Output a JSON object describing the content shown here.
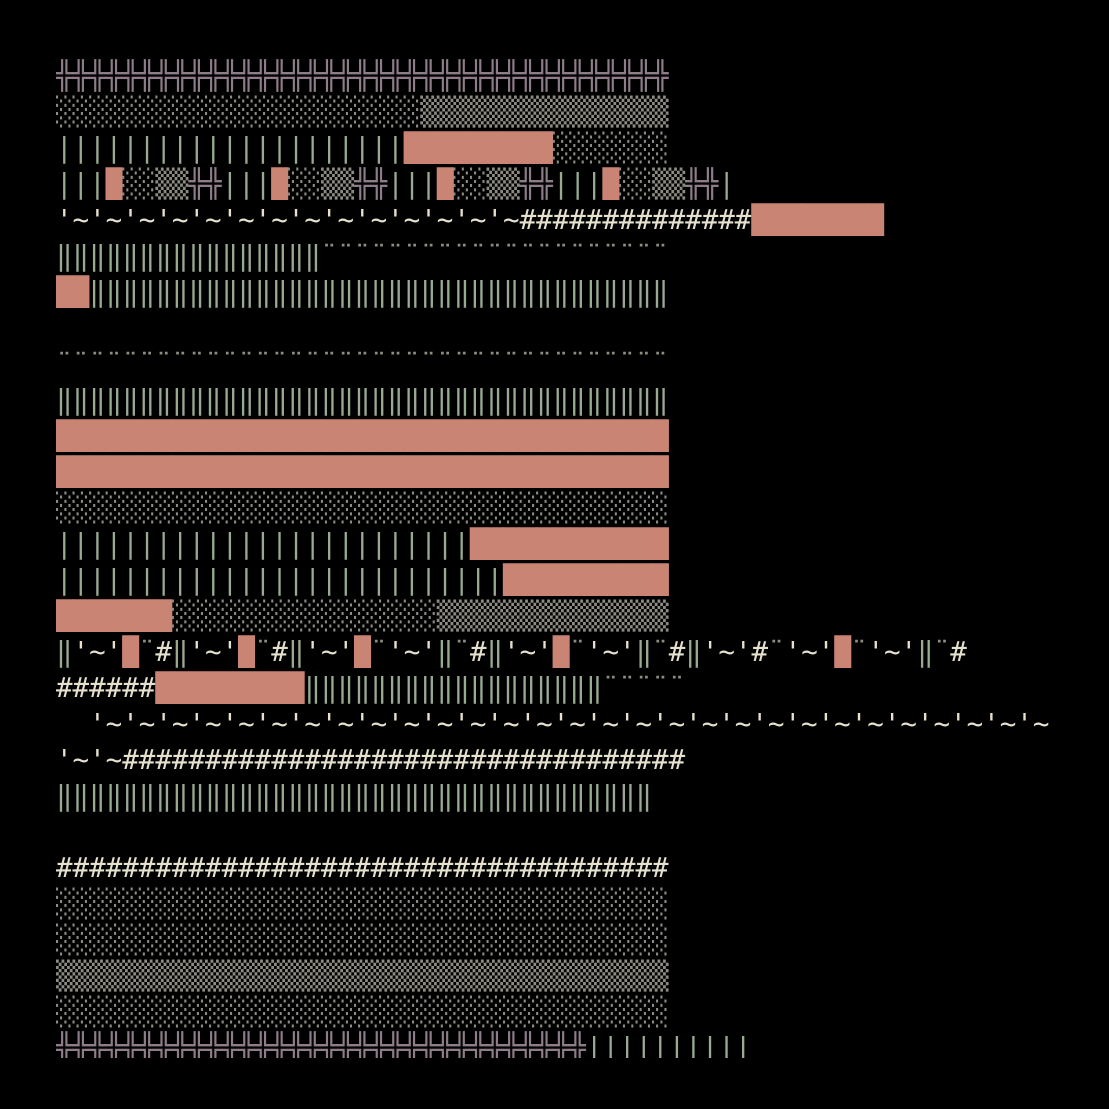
{
  "palette": {
    "background": "#000000",
    "mauve": "#8e7d88",
    "dots": "#8d8c82",
    "green": "#98aa92",
    "salmon": "#c98473",
    "ivory": "#e6e0cf"
  },
  "rows": [
    {
      "segments": [
        {
          "color": "mauve",
          "text": "╬╬╬╬╬╬╬╬╬╬╬╬╬╬╬╬╬╬╬╬╬╬╬╬╬╬╬╬╬╬╬╬╬╬╬╬╬"
        }
      ]
    },
    {
      "segments": [
        {
          "color": "dots",
          "text": "░░░░░░░░░░░░░░░░░░░░░░▒▒▒▒▒▒▒▒▒▒▒▒▒▒▒"
        }
      ]
    },
    {
      "segments": [
        {
          "color": "green",
          "text": "|||||||||||||||||||||"
        },
        {
          "color": "salmon",
          "text": "█████████"
        },
        {
          "color": "dots",
          "text": "░░░░░░░"
        }
      ]
    },
    {
      "segments": [
        {
          "color": "green",
          "text": "|||"
        },
        {
          "color": "salmon",
          "text": "█"
        },
        {
          "color": "dots",
          "text": "░░▒▒"
        },
        {
          "color": "mauve",
          "text": "╬╬"
        },
        {
          "color": "green",
          "text": "|||"
        },
        {
          "color": "salmon",
          "text": "█"
        },
        {
          "color": "dots",
          "text": "░░▒▒"
        },
        {
          "color": "mauve",
          "text": "╬╬"
        },
        {
          "color": "green",
          "text": "|||"
        },
        {
          "color": "salmon",
          "text": "█"
        },
        {
          "color": "dots",
          "text": "░░▒▒"
        },
        {
          "color": "mauve",
          "text": "╬╬"
        },
        {
          "color": "green",
          "text": "|||"
        },
        {
          "color": "salmon",
          "text": "█"
        },
        {
          "color": "dots",
          "text": "░░▒▒"
        },
        {
          "color": "mauve",
          "text": "╬╬"
        },
        {
          "color": "green",
          "text": "|"
        }
      ]
    },
    {
      "segments": [
        {
          "color": "ivory",
          "text": "'~'~'~'~'~'~'~'~'~'~'~'~'~'~##############"
        },
        {
          "color": "salmon",
          "text": "████████"
        }
      ]
    },
    {
      "segments": [
        {
          "color": "green",
          "text": "‖‖‖‖‖‖‖‖‖‖‖‖‖‖‖‖"
        },
        {
          "color": "dots",
          "text": "¨¨¨¨¨¨¨¨¨¨¨¨¨¨¨¨¨¨¨¨¨"
        }
      ]
    },
    {
      "segments": [
        {
          "color": "salmon",
          "text": "██"
        },
        {
          "color": "green",
          "text": "‖‖‖‖‖‖‖‖‖‖‖‖‖‖‖‖‖‖‖‖‖‖‖‖‖‖‖‖‖‖‖‖‖‖‖"
        }
      ]
    },
    {
      "segments": [
        {
          "color": "dots",
          "text": ""
        }
      ]
    },
    {
      "segments": [
        {
          "color": "dots",
          "text": "¨¨¨¨¨¨¨¨¨¨¨¨¨¨¨¨¨¨¨¨¨¨¨¨¨¨¨¨¨¨¨¨¨¨¨¨¨"
        }
      ]
    },
    {
      "segments": [
        {
          "color": "green",
          "text": "‖‖‖‖‖‖‖‖‖‖‖‖‖‖‖‖‖‖‖‖‖‖‖‖‖‖‖‖‖‖‖‖‖‖‖‖‖"
        }
      ]
    },
    {
      "segments": [
        {
          "color": "salmon",
          "text": "█████████████████████████████████████"
        }
      ]
    },
    {
      "segments": [
        {
          "color": "salmon",
          "text": "█████████████████████████████████████"
        }
      ]
    },
    {
      "segments": [
        {
          "color": "dots",
          "text": "░░░░░░░░░░░░░░░░░░░░░░░░░░░░░░░░░░░░░"
        }
      ]
    },
    {
      "segments": [
        {
          "color": "green",
          "text": "|||||||||||||||||||||||||"
        },
        {
          "color": "salmon",
          "text": "████████████"
        }
      ]
    },
    {
      "segments": [
        {
          "color": "green",
          "text": "|||||||||||||||||||||||||||"
        },
        {
          "color": "salmon",
          "text": "██████████"
        }
      ]
    },
    {
      "segments": [
        {
          "color": "salmon",
          "text": "███████"
        },
        {
          "color": "dots",
          "text": "░░░░░░░░░░░░░░░░▒▒▒▒▒▒▒▒▒▒▒▒▒▒"
        }
      ]
    },
    {
      "segments": [
        {
          "color": "green",
          "text": "‖"
        },
        {
          "color": "ivory",
          "text": "'~'"
        },
        {
          "color": "salmon",
          "text": "█"
        },
        {
          "color": "dots",
          "text": "¨"
        },
        {
          "color": "ivory",
          "text": "#"
        },
        {
          "color": "green",
          "text": "‖"
        },
        {
          "color": "ivory",
          "text": "'~'"
        },
        {
          "color": "salmon",
          "text": "█"
        },
        {
          "color": "dots",
          "text": "¨"
        },
        {
          "color": "ivory",
          "text": "#"
        },
        {
          "color": "green",
          "text": "‖"
        },
        {
          "color": "ivory",
          "text": "'~'"
        },
        {
          "color": "salmon",
          "text": "█"
        },
        {
          "color": "dots",
          "text": "¨"
        },
        {
          "color": "ivory",
          "text": "'~'"
        },
        {
          "color": "green",
          "text": "‖"
        },
        {
          "color": "dots",
          "text": "¨"
        },
        {
          "color": "ivory",
          "text": "#"
        },
        {
          "color": "green",
          "text": "‖"
        },
        {
          "color": "ivory",
          "text": "'~'"
        },
        {
          "color": "salmon",
          "text": "█"
        },
        {
          "color": "dots",
          "text": "¨"
        },
        {
          "color": "ivory",
          "text": "'~'"
        },
        {
          "color": "green",
          "text": "‖"
        },
        {
          "color": "dots",
          "text": "¨"
        },
        {
          "color": "ivory",
          "text": "#"
        },
        {
          "color": "green",
          "text": "‖"
        },
        {
          "color": "ivory",
          "text": "'~'#"
        },
        {
          "color": "dots",
          "text": "¨"
        },
        {
          "color": "ivory",
          "text": "'~'"
        },
        {
          "color": "salmon",
          "text": "█"
        },
        {
          "color": "dots",
          "text": "¨"
        },
        {
          "color": "ivory",
          "text": "'~'"
        },
        {
          "color": "green",
          "text": "‖"
        },
        {
          "color": "dots",
          "text": "¨"
        },
        {
          "color": "ivory",
          "text": "#"
        }
      ]
    },
    {
      "segments": [
        {
          "color": "ivory",
          "text": "######"
        },
        {
          "color": "salmon",
          "text": "█████████"
        },
        {
          "color": "green",
          "text": "‖‖‖‖‖‖‖‖‖‖‖‖‖‖‖‖‖‖"
        },
        {
          "color": "dots",
          "text": "¨¨¨¨¨"
        }
      ]
    },
    {
      "segments": [
        {
          "color": "dots",
          "text": ""
        },
        {
          "color": "ivory",
          "text": "  '~'~'~'~'~'~'~'~'~'~'~'~'~'~'~'~'~'~'~'~'~'~'~'~'~'~'~'~'~'~'~'~'~'~'~'~'"
        }
      ]
    },
    {
      "segments": [
        {
          "color": "ivory",
          "text": "'~'~##################################"
        }
      ]
    },
    {
      "segments": [
        {
          "color": "green",
          "text": "‖‖‖‖‖‖‖‖‖‖‖‖‖‖‖‖‖‖‖‖‖‖‖‖‖‖‖‖‖‖‖‖‖‖‖‖"
        }
      ]
    },
    {
      "segments": [
        {
          "color": "dots",
          "text": ""
        }
      ]
    },
    {
      "segments": [
        {
          "color": "ivory",
          "text": "#####################################"
        }
      ]
    },
    {
      "segments": [
        {
          "color": "dots",
          "text": "░░░░░░░░░░░░░░░░░░░░░░░░░░░░░░░░░░░░░"
        }
      ]
    },
    {
      "segments": [
        {
          "color": "dots",
          "text": "░░░░░░░░░░░░░░░░░░░░░░░░░░░░░░░░░░░░░"
        }
      ]
    },
    {
      "segments": [
        {
          "color": "dots",
          "text": "▒▒▒▒▒▒▒▒▒▒▒▒▒▒▒▒▒▒▒▒▒▒▒▒▒▒▒▒▒▒▒▒▒▒▒▒▒"
        }
      ]
    },
    {
      "segments": [
        {
          "color": "dots",
          "text": "░░░░░░░░░░░░░░░░░░░░░░░░░░░░░░░░░░░░░"
        }
      ]
    },
    {
      "segments": [
        {
          "color": "mauve",
          "text": "╬╬╬╬╬╬╬╬╬╬╬╬╬╬╬╬╬╬╬╬╬╬╬╬╬╬╬╬╬╬╬╬"
        },
        {
          "color": "green",
          "text": "||||||||||"
        }
      ]
    },
    {
      "segments": [
        {
          "color": "dots",
          "text": "░░░░░░░░░░░░░░░░░░░░░░░░░░░░"
        },
        {
          "color": "mauve",
          "text": "╩╩╩╩╩╩╩╩╩"
        }
      ]
    }
  ]
}
